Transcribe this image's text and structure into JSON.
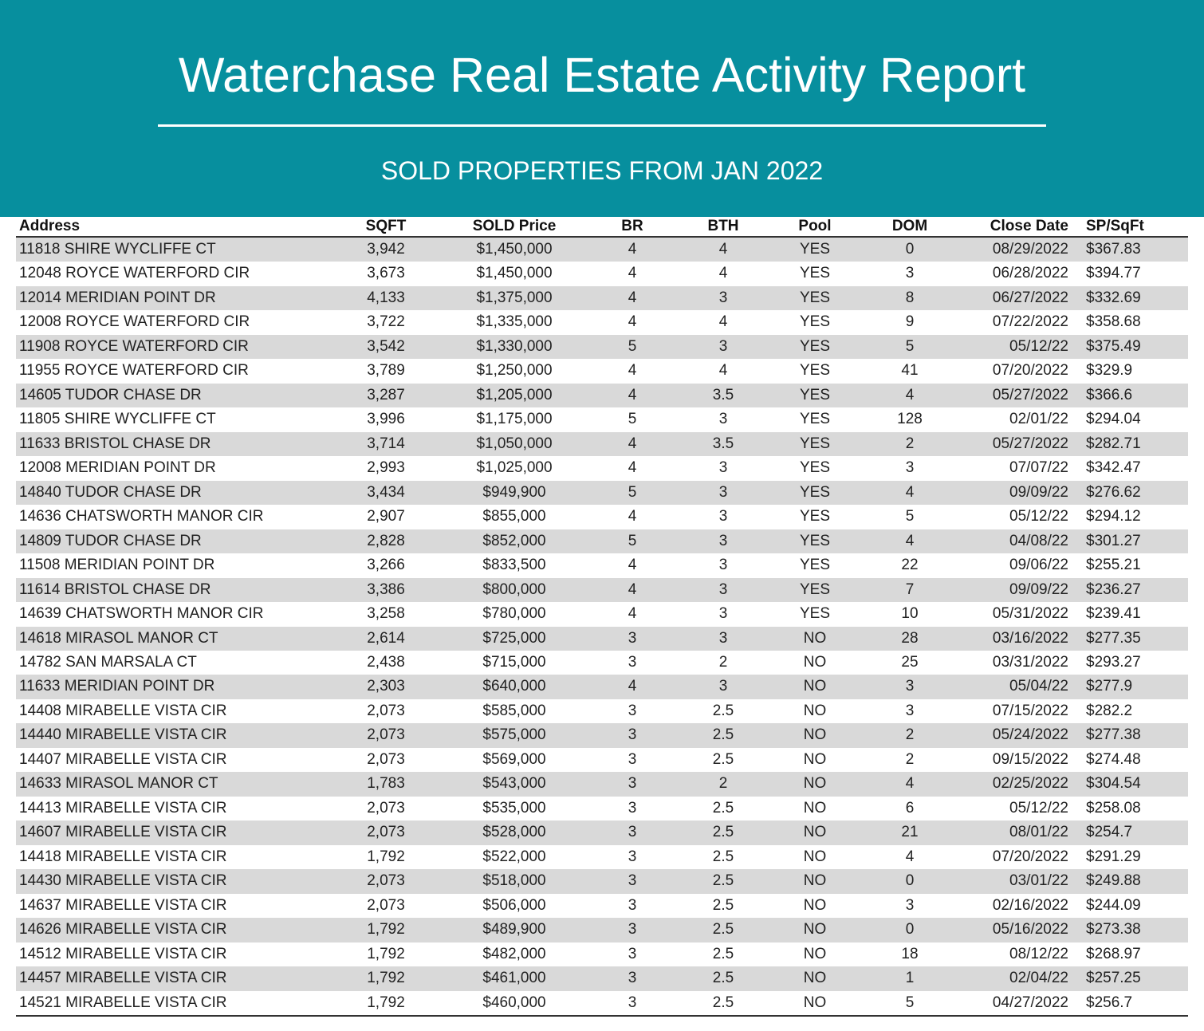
{
  "header": {
    "title": "Waterchase Real Estate Activity Report",
    "subtitle": "SOLD PROPERTIES FROM JAN 2022"
  },
  "table": {
    "columns": [
      "Address",
      "SQFT",
      "SOLD Price",
      "BR",
      "BTH",
      "Pool",
      "DOM",
      "Close Date",
      "SP/SqFt"
    ],
    "rows": [
      [
        "11818 SHIRE WYCLIFFE CT",
        "3,942",
        "$1,450,000",
        "4",
        "4",
        "YES",
        "0",
        "08/29/2022",
        "$367.83"
      ],
      [
        "12048 ROYCE WATERFORD CIR",
        "3,673",
        "$1,450,000",
        "4",
        "4",
        "YES",
        "3",
        "06/28/2022",
        "$394.77"
      ],
      [
        "12014 MERIDIAN POINT DR",
        "4,133",
        "$1,375,000",
        "4",
        "3",
        "YES",
        "8",
        "06/27/2022",
        "$332.69"
      ],
      [
        "12008 ROYCE WATERFORD CIR",
        "3,722",
        "$1,335,000",
        "4",
        "4",
        "YES",
        "9",
        "07/22/2022",
        "$358.68"
      ],
      [
        "11908 ROYCE WATERFORD CIR",
        "3,542",
        "$1,330,000",
        "5",
        "3",
        "YES",
        "5",
        "05/12/22",
        "$375.49"
      ],
      [
        "11955 ROYCE WATERFORD CIR",
        "3,789",
        "$1,250,000",
        "4",
        "4",
        "YES",
        "41",
        "07/20/2022",
        "$329.9"
      ],
      [
        "14605 TUDOR CHASE DR",
        "3,287",
        "$1,205,000",
        "4",
        "3.5",
        "YES",
        "4",
        "05/27/2022",
        "$366.6"
      ],
      [
        "11805 SHIRE WYCLIFFE CT",
        "3,996",
        "$1,175,000",
        "5",
        "3",
        "YES",
        "128",
        "02/01/22",
        "$294.04"
      ],
      [
        "11633 BRISTOL CHASE DR",
        "3,714",
        "$1,050,000",
        "4",
        "3.5",
        "YES",
        "2",
        "05/27/2022",
        "$282.71"
      ],
      [
        "12008 MERIDIAN POINT DR",
        "2,993",
        "$1,025,000",
        "4",
        "3",
        "YES",
        "3",
        "07/07/22",
        "$342.47"
      ],
      [
        "14840 TUDOR CHASE DR",
        "3,434",
        "$949,900",
        "5",
        "3",
        "YES",
        "4",
        "09/09/22",
        "$276.62"
      ],
      [
        "14636 CHATSWORTH MANOR CIR",
        "2,907",
        "$855,000",
        "4",
        "3",
        "YES",
        "5",
        "05/12/22",
        "$294.12"
      ],
      [
        "14809 TUDOR CHASE DR",
        "2,828",
        "$852,000",
        "5",
        "3",
        "YES",
        "4",
        "04/08/22",
        "$301.27"
      ],
      [
        "11508 MERIDIAN POINT DR",
        "3,266",
        "$833,500",
        "4",
        "3",
        "YES",
        "22",
        "09/06/22",
        "$255.21"
      ],
      [
        "11614 BRISTOL CHASE DR",
        "3,386",
        "$800,000",
        "4",
        "3",
        "YES",
        "7",
        "09/09/22",
        "$236.27"
      ],
      [
        "14639 CHATSWORTH MANOR CIR",
        "3,258",
        "$780,000",
        "4",
        "3",
        "YES",
        "10",
        "05/31/2022",
        "$239.41"
      ],
      [
        "14618 MIRASOL MANOR CT",
        "2,614",
        "$725,000",
        "3",
        "3",
        "NO",
        "28",
        "03/16/2022",
        "$277.35"
      ],
      [
        "14782 SAN MARSALA CT",
        "2,438",
        "$715,000",
        "3",
        "2",
        "NO",
        "25",
        "03/31/2022",
        "$293.27"
      ],
      [
        "11633 MERIDIAN POINT DR",
        "2,303",
        "$640,000",
        "4",
        "3",
        "NO",
        "3",
        "05/04/22",
        "$277.9"
      ],
      [
        "14408 MIRABELLE VISTA CIR",
        "2,073",
        "$585,000",
        "3",
        "2.5",
        "NO",
        "3",
        "07/15/2022",
        "$282.2"
      ],
      [
        "14440 MIRABELLE VISTA CIR",
        "2,073",
        "$575,000",
        "3",
        "2.5",
        "NO",
        "2",
        "05/24/2022",
        "$277.38"
      ],
      [
        "14407 MIRABELLE VISTA CIR",
        "2,073",
        "$569,000",
        "3",
        "2.5",
        "NO",
        "2",
        "09/15/2022",
        "$274.48"
      ],
      [
        "14633 MIRASOL MANOR CT",
        "1,783",
        "$543,000",
        "3",
        "2",
        "NO",
        "4",
        "02/25/2022",
        "$304.54"
      ],
      [
        "14413 MIRABELLE VISTA CIR",
        "2,073",
        "$535,000",
        "3",
        "2.5",
        "NO",
        "6",
        "05/12/22",
        "$258.08"
      ],
      [
        "14607 MIRABELLE VISTA CIR",
        "2,073",
        "$528,000",
        "3",
        "2.5",
        "NO",
        "21",
        "08/01/22",
        "$254.7"
      ],
      [
        "14418 MIRABELLE VISTA CIR",
        "1,792",
        "$522,000",
        "3",
        "2.5",
        "NO",
        "4",
        "07/20/2022",
        "$291.29"
      ],
      [
        "14430 MIRABELLE VISTA CIR",
        "2,073",
        "$518,000",
        "3",
        "2.5",
        "NO",
        "0",
        "03/01/22",
        "$249.88"
      ],
      [
        "14637 MIRABELLE VISTA CIR",
        "2,073",
        "$506,000",
        "3",
        "2.5",
        "NO",
        "3",
        "02/16/2022",
        "$244.09"
      ],
      [
        "14626 MIRABELLE VISTA CIR",
        "1,792",
        "$489,900",
        "3",
        "2.5",
        "NO",
        "0",
        "05/16/2022",
        "$273.38"
      ],
      [
        "14512 MIRABELLE VISTA CIR",
        "1,792",
        "$482,000",
        "3",
        "2.5",
        "NO",
        "18",
        "08/12/22",
        "$268.97"
      ],
      [
        "14457 MIRABELLE VISTA CIR",
        "1,792",
        "$461,000",
        "3",
        "2.5",
        "NO",
        "1",
        "02/04/22",
        "$257.25"
      ],
      [
        "14521 MIRABELLE VISTA CIR",
        "1,792",
        "$460,000",
        "3",
        "2.5",
        "NO",
        "5",
        "04/27/2022",
        "$256.7"
      ]
    ]
  }
}
